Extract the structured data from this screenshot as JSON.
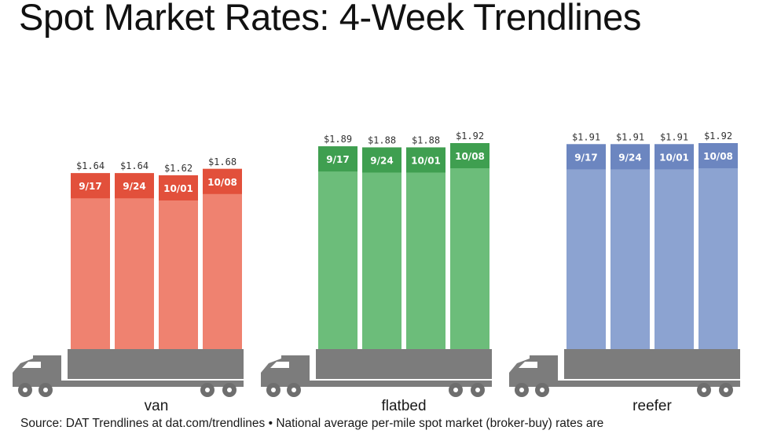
{
  "chart_data": {
    "type": "bar",
    "title": "Spot Market Rates: 4-Week Trendlines",
    "ylim": [
      0,
      2.05
    ],
    "groups": [
      {
        "name": "van",
        "color": "#ef8270",
        "band_color": "#e2503b",
        "bars": [
          {
            "date": "9/17",
            "value": 1.64,
            "value_label": "$1.64"
          },
          {
            "date": "9/24",
            "value": 1.64,
            "value_label": "$1.64"
          },
          {
            "date": "10/01",
            "value": 1.62,
            "value_label": "$1.62"
          },
          {
            "date": "10/08",
            "value": 1.68,
            "value_label": "$1.68"
          }
        ]
      },
      {
        "name": "flatbed",
        "color": "#6cbd7a",
        "band_color": "#3f9f50",
        "bars": [
          {
            "date": "9/17",
            "value": 1.89,
            "value_label": "$1.89"
          },
          {
            "date": "9/24",
            "value": 1.88,
            "value_label": "$1.88"
          },
          {
            "date": "10/01",
            "value": 1.88,
            "value_label": "$1.88"
          },
          {
            "date": "10/08",
            "value": 1.92,
            "value_label": "$1.92"
          }
        ]
      },
      {
        "name": "reefer",
        "color": "#8ca3d1",
        "band_color": "#6c86c0",
        "bars": [
          {
            "date": "9/17",
            "value": 1.91,
            "value_label": "$1.91"
          },
          {
            "date": "9/24",
            "value": 1.91,
            "value_label": "$1.91"
          },
          {
            "date": "10/01",
            "value": 1.91,
            "value_label": "$1.91"
          },
          {
            "date": "10/08",
            "value": 1.92,
            "value_label": "$1.92"
          }
        ]
      }
    ],
    "truck_color": "#7c7c7c",
    "wheel_color": "#6e6e6e"
  },
  "footer": {
    "source": "Source: DAT Trendlines at dat.com/trendlines • National average per-mile spot market (broker-buy) rates are"
  }
}
